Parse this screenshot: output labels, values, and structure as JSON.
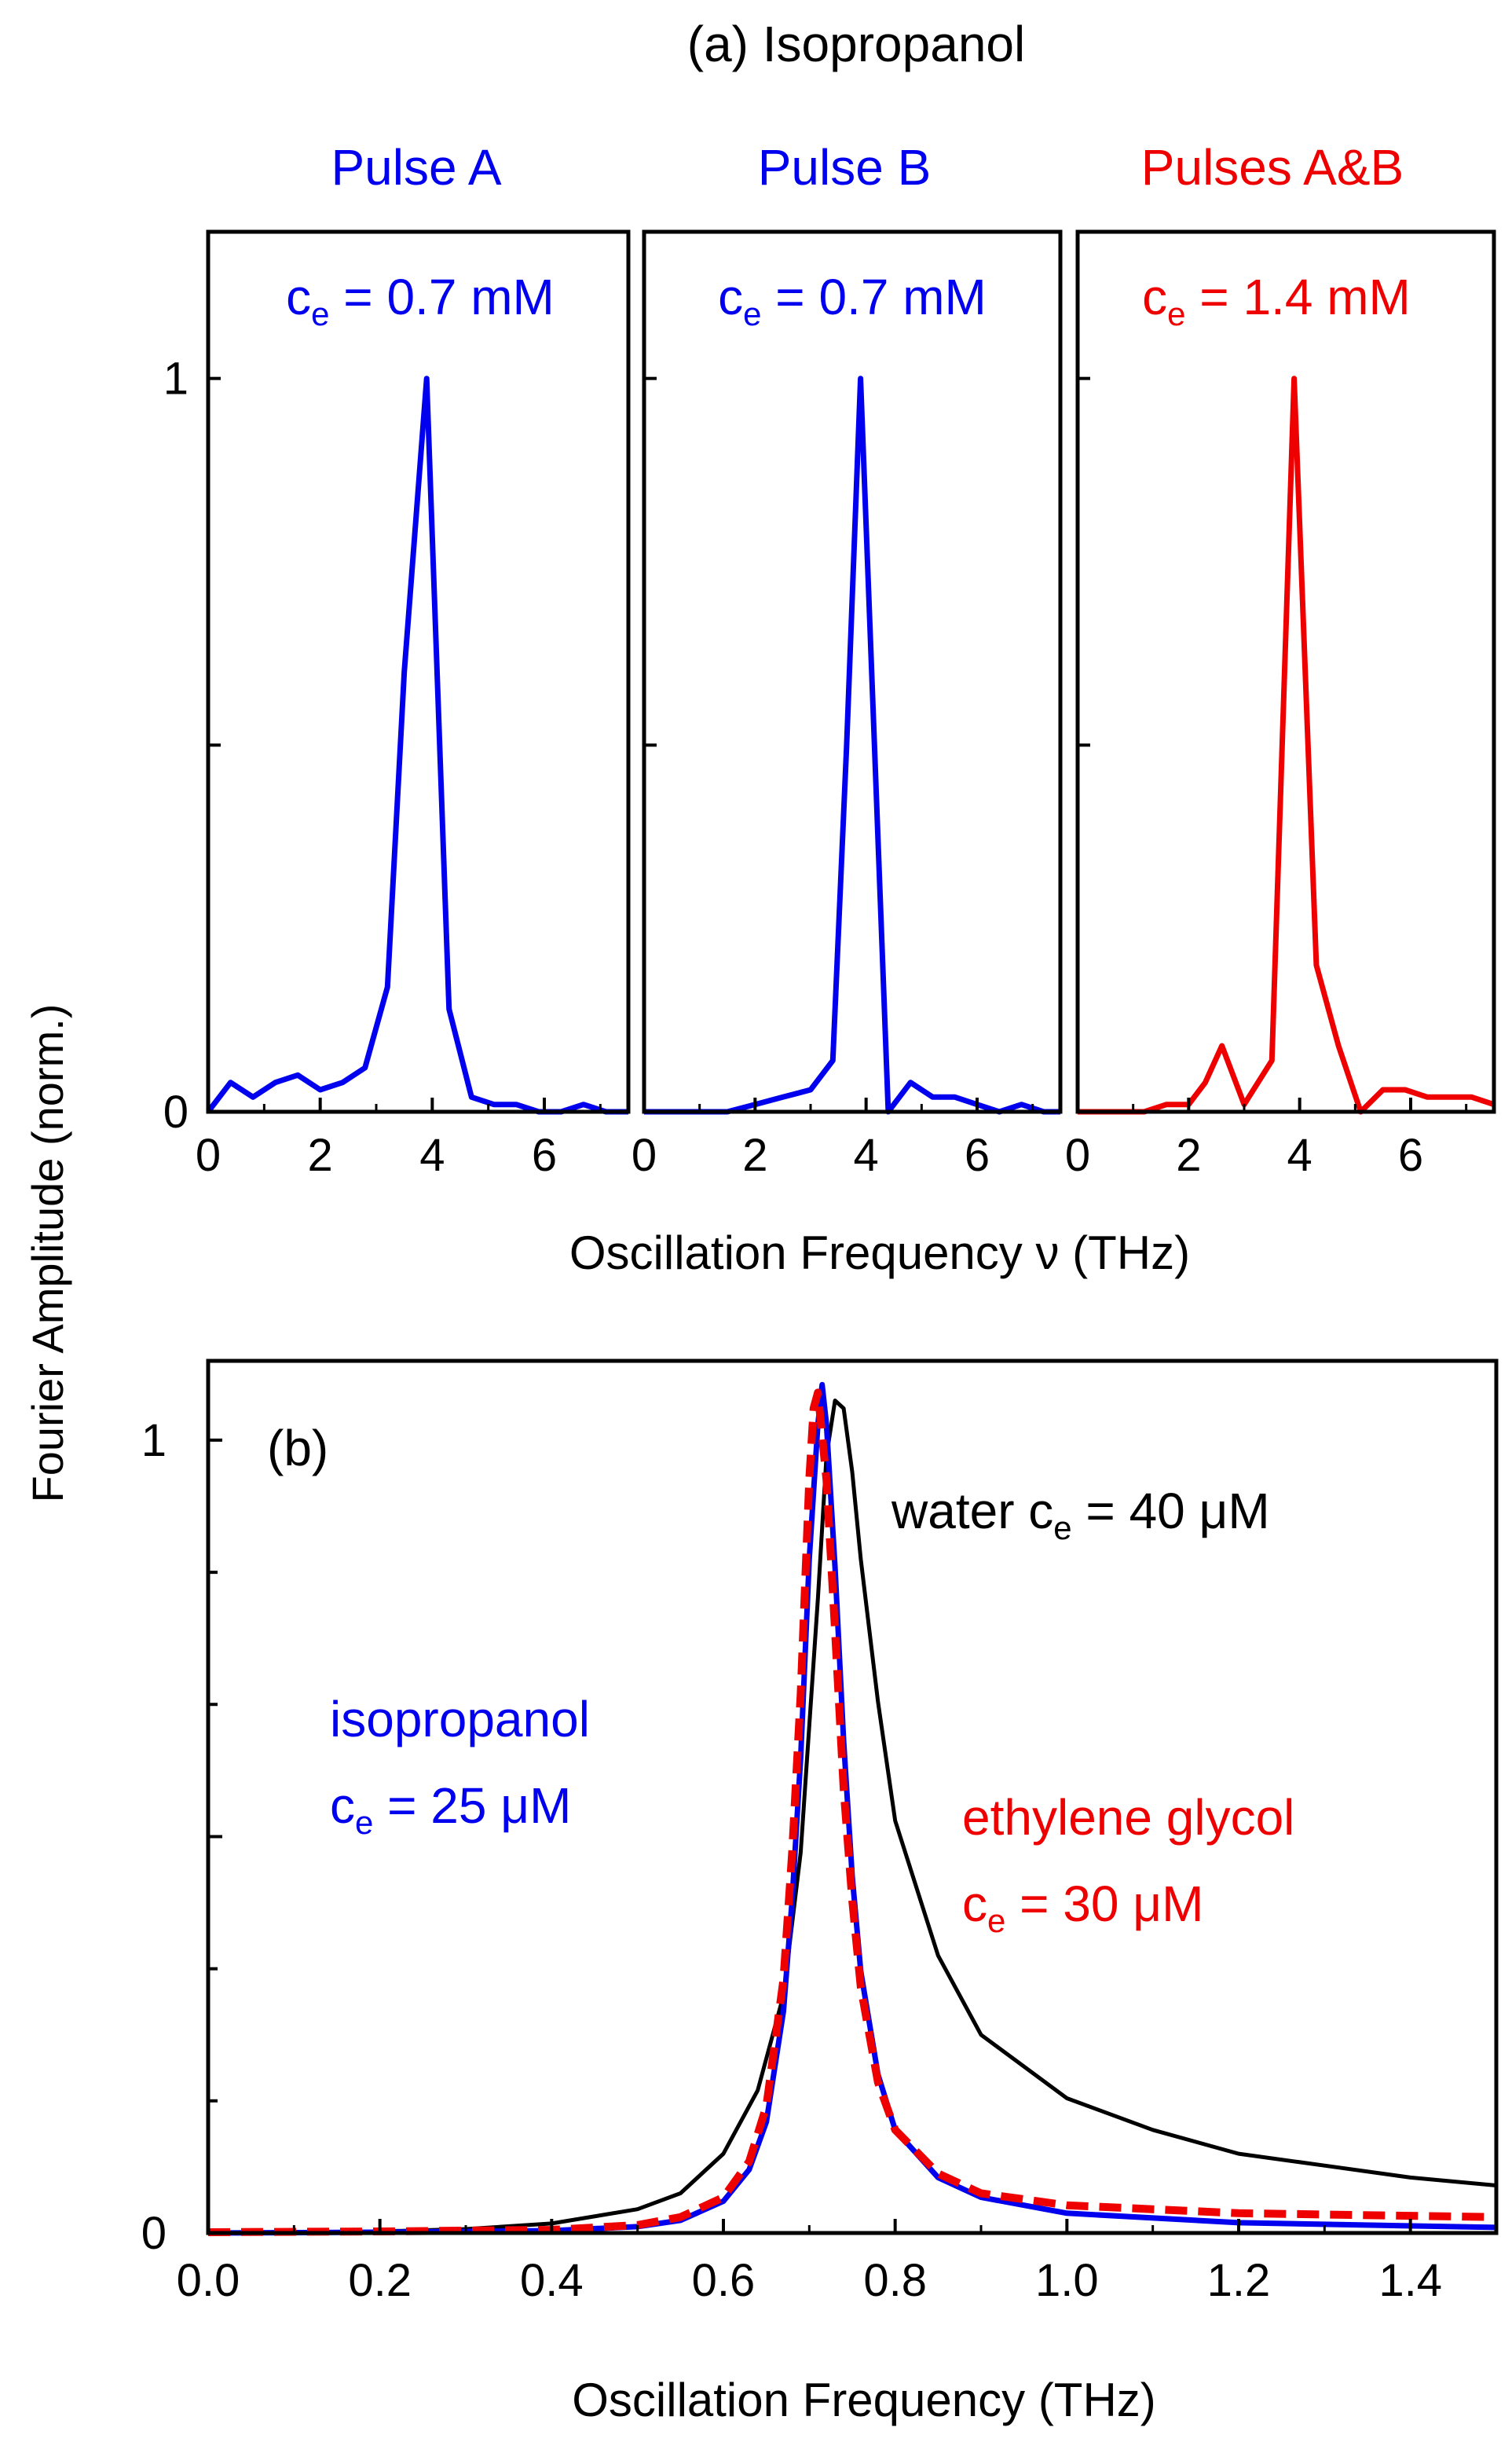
{
  "colors": {
    "blue": "#0000ee",
    "red": "#ee0000",
    "black": "#000000"
  },
  "shared": {
    "ylabel": "Fourier Amplitude (norm.)"
  },
  "chart_data": [
    {
      "type": "line",
      "panel": "a",
      "title": "(a) Isopropanol",
      "xlabel": "Oscillation Frequency ν (THz)",
      "xlim": [
        0,
        7.5
      ],
      "ylim": [
        0,
        1.2
      ],
      "x_ticks": [
        0,
        2,
        4,
        6
      ],
      "y_tick_labels": [
        {
          "value": 0,
          "label": "0"
        },
        {
          "value": 1,
          "label": "1"
        }
      ],
      "subplots": [
        {
          "header": "Pulse A",
          "label_main": "c",
          "label_sub": "e",
          "label_rest": " = 0.7 mM",
          "color": "#0000ee",
          "x": [
            0,
            0.4,
            0.8,
            1.2,
            1.6,
            2.0,
            2.4,
            2.8,
            3.2,
            3.5,
            3.9,
            4.3,
            4.7,
            5.1,
            5.5,
            5.9,
            6.3,
            6.7,
            7.1,
            7.5
          ],
          "y": [
            0.0,
            0.04,
            0.02,
            0.04,
            0.05,
            0.03,
            0.04,
            0.06,
            0.17,
            0.6,
            1.0,
            0.14,
            0.02,
            0.01,
            0.01,
            0.0,
            0.0,
            0.01,
            0.0,
            0.0
          ]
        },
        {
          "header": "Pulse B",
          "label_main": "c",
          "label_sub": "e",
          "label_rest": " = 0.7 mM",
          "color": "#0000ee",
          "x": [
            0,
            0.5,
            1.0,
            1.5,
            2.0,
            2.5,
            3.0,
            3.4,
            3.65,
            3.9,
            4.15,
            4.4,
            4.8,
            5.2,
            5.6,
            6.0,
            6.4,
            6.8,
            7.2,
            7.5
          ],
          "y": [
            0.0,
            0.0,
            0.0,
            0.0,
            0.01,
            0.02,
            0.03,
            0.07,
            0.5,
            1.0,
            0.5,
            0.0,
            0.04,
            0.02,
            0.02,
            0.01,
            0.0,
            0.01,
            0.0,
            0.0
          ]
        },
        {
          "header": "Pulses A&B",
          "label_main": "c",
          "label_sub": "e",
          "label_rest": " = 1.4 mM",
          "color": "#ee0000",
          "x": [
            0,
            0.4,
            0.8,
            1.2,
            1.6,
            2.0,
            2.3,
            2.6,
            3.0,
            3.5,
            3.9,
            4.3,
            4.7,
            5.1,
            5.5,
            5.9,
            6.3,
            6.7,
            7.1,
            7.5
          ],
          "y": [
            0.0,
            0.0,
            0.0,
            0.0,
            0.01,
            0.01,
            0.04,
            0.09,
            0.01,
            0.07,
            1.0,
            0.2,
            0.09,
            0.0,
            0.03,
            0.03,
            0.02,
            0.02,
            0.02,
            0.01
          ]
        }
      ]
    },
    {
      "type": "line",
      "panel": "b",
      "panel_label": "(b)",
      "xlabel": "Oscillation Frequency  (THz)",
      "xlim": [
        0,
        1.5
      ],
      "ylim": [
        0,
        1.1
      ],
      "x_ticks": [
        "0.0",
        "0.2",
        "0.4",
        "0.6",
        "0.8",
        "1.0",
        "1.2",
        "1.4"
      ],
      "y_tick_labels": [
        {
          "value": 0,
          "label": "0"
        },
        {
          "value": 1,
          "label": "1"
        }
      ],
      "annotations": {
        "water": {
          "name": "water ",
          "main": "c",
          "sub": "e",
          "rest": " = 40 μM",
          "color": "#000000"
        },
        "isopropanol": {
          "name": "isopropanol",
          "main": "c",
          "sub": "e",
          "rest": " = 25 μM",
          "color": "#0000ee"
        },
        "ethylene_glycol": {
          "name": "ethylene glycol",
          "main": "c",
          "sub": "e",
          "rest": " = 30 μM",
          "color": "#ee0000"
        }
      },
      "series": [
        {
          "name": "water",
          "color": "#000000",
          "style": "solid",
          "x": [
            0.0,
            0.1,
            0.2,
            0.3,
            0.4,
            0.5,
            0.55,
            0.6,
            0.64,
            0.67,
            0.69,
            0.71,
            0.72,
            0.73,
            0.74,
            0.75,
            0.76,
            0.78,
            0.8,
            0.85,
            0.9,
            1.0,
            1.1,
            1.2,
            1.3,
            1.4,
            1.5
          ],
          "y": [
            0.0,
            0.0,
            0.002,
            0.005,
            0.012,
            0.03,
            0.05,
            0.1,
            0.18,
            0.3,
            0.48,
            0.8,
            0.98,
            1.05,
            1.04,
            0.96,
            0.85,
            0.67,
            0.52,
            0.35,
            0.25,
            0.17,
            0.13,
            0.1,
            0.085,
            0.07,
            0.06
          ]
        },
        {
          "name": "isopropanol",
          "color": "#0000ee",
          "style": "solid",
          "x": [
            0.0,
            0.2,
            0.4,
            0.5,
            0.55,
            0.6,
            0.63,
            0.65,
            0.67,
            0.68,
            0.69,
            0.7,
            0.71,
            0.715,
            0.72,
            0.73,
            0.74,
            0.75,
            0.76,
            0.78,
            0.8,
            0.85,
            0.9,
            1.0,
            1.2,
            1.5
          ],
          "y": [
            0.0,
            0.001,
            0.003,
            0.008,
            0.016,
            0.04,
            0.08,
            0.14,
            0.28,
            0.42,
            0.6,
            0.85,
            1.02,
            1.07,
            1.02,
            0.84,
            0.62,
            0.45,
            0.33,
            0.2,
            0.13,
            0.07,
            0.045,
            0.025,
            0.013,
            0.007
          ]
        },
        {
          "name": "ethylene glycol",
          "color": "#ee0000",
          "style": "dashed",
          "x": [
            0.0,
            0.2,
            0.4,
            0.5,
            0.55,
            0.6,
            0.63,
            0.65,
            0.67,
            0.68,
            0.69,
            0.7,
            0.705,
            0.71,
            0.72,
            0.73,
            0.74,
            0.75,
            0.76,
            0.78,
            0.8,
            0.85,
            0.9,
            1.0,
            1.2,
            1.5
          ],
          "y": [
            0.001,
            0.002,
            0.004,
            0.01,
            0.02,
            0.045,
            0.09,
            0.16,
            0.32,
            0.48,
            0.68,
            0.95,
            1.04,
            1.06,
            0.95,
            0.76,
            0.56,
            0.42,
            0.31,
            0.19,
            0.13,
            0.075,
            0.05,
            0.035,
            0.025,
            0.02
          ]
        }
      ]
    }
  ]
}
